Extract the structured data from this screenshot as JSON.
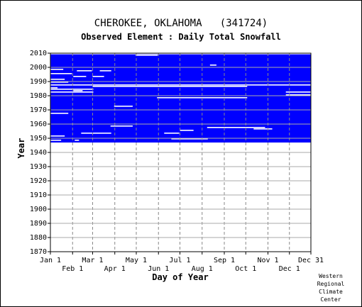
{
  "chart_data": {
    "type": "heatmap",
    "title": "CHEROKEE, OKLAHOMA   (341724)",
    "subtitle": "Observed Element : Daily Total Snowfall",
    "xlabel": "Day of Year",
    "ylabel": "Year",
    "x_ticks_top": [
      "Jan 1",
      "Mar 1",
      "May 1",
      "Jul 1",
      "Sep 1",
      "Nov 1",
      "Dec 31"
    ],
    "x_ticks_bottom": [
      "Feb 1",
      "Apr 1",
      "Jun 1",
      "Aug 1",
      "Oct 1",
      "Dec 1"
    ],
    "y_ticks": [
      2010,
      2000,
      1990,
      1980,
      1970,
      1960,
      1950,
      1940,
      1930,
      1920,
      1910,
      1900,
      1890,
      1880,
      1870
    ],
    "ylim": [
      1870,
      2010
    ],
    "xlim": [
      1,
      365
    ],
    "data_years": [
      1947,
      2009
    ],
    "present_color": "#0000ff",
    "missing_color": "#ffffff",
    "grid": true,
    "missing_segments": [
      {
        "year": 2009,
        "start": 1,
        "end": 365
      },
      {
        "year": 2008,
        "start": 120,
        "end": 150
      },
      {
        "year": 2001,
        "start": 224,
        "end": 232
      },
      {
        "year": 1998,
        "start": 1,
        "end": 18
      },
      {
        "year": 1997,
        "start": 38,
        "end": 58
      },
      {
        "year": 1997,
        "start": 70,
        "end": 85
      },
      {
        "year": 1995,
        "start": 1,
        "end": 30
      },
      {
        "year": 1993,
        "start": 33,
        "end": 50
      },
      {
        "year": 1993,
        "start": 60,
        "end": 75
      },
      {
        "year": 1991,
        "start": 1,
        "end": 20
      },
      {
        "year": 1989,
        "start": 1,
        "end": 25
      },
      {
        "year": 1987,
        "start": 1,
        "end": 365
      },
      {
        "year": 1986,
        "start": 60,
        "end": 275
      },
      {
        "year": 1985,
        "start": 1,
        "end": 10
      },
      {
        "year": 1984,
        "start": 1,
        "end": 60
      },
      {
        "year": 1983,
        "start": 33,
        "end": 45
      },
      {
        "year": 1982,
        "start": 1,
        "end": 60
      },
      {
        "year": 1982,
        "start": 330,
        "end": 365
      },
      {
        "year": 1980,
        "start": 330,
        "end": 365
      },
      {
        "year": 1978,
        "start": 150,
        "end": 275
      },
      {
        "year": 1972,
        "start": 90,
        "end": 115
      },
      {
        "year": 1967,
        "start": 1,
        "end": 25
      },
      {
        "year": 1958,
        "start": 85,
        "end": 115
      },
      {
        "year": 1957,
        "start": 220,
        "end": 245
      },
      {
        "year": 1957,
        "start": 245,
        "end": 300
      },
      {
        "year": 1956,
        "start": 285,
        "end": 310
      },
      {
        "year": 1955,
        "start": 182,
        "end": 200
      },
      {
        "year": 1953,
        "start": 44,
        "end": 85
      },
      {
        "year": 1953,
        "start": 160,
        "end": 180
      },
      {
        "year": 1951,
        "start": 1,
        "end": 20
      },
      {
        "year": 1949,
        "start": 170,
        "end": 220
      },
      {
        "year": 1948,
        "start": 1,
        "end": 15
      },
      {
        "year": 1948,
        "start": 35,
        "end": 40
      }
    ]
  },
  "credit_lines": [
    "Western",
    "Regional",
    "Climate",
    "Center"
  ]
}
